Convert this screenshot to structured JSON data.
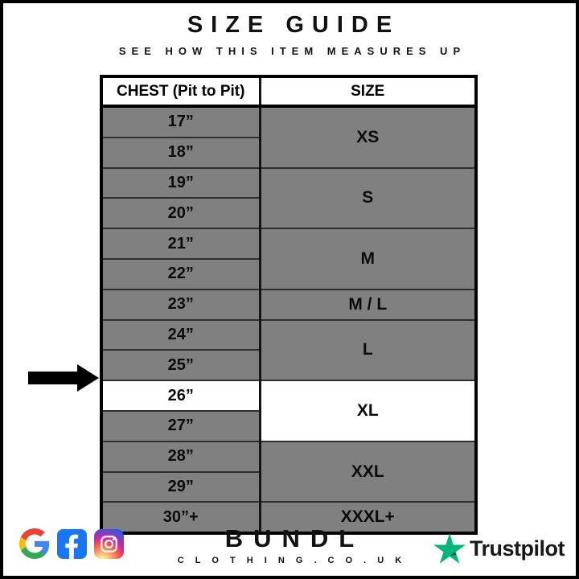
{
  "title": "SIZE GUIDE",
  "subtitle": "SEE HOW THIS ITEM MEASURES UP",
  "table": {
    "col_chest": "CHEST (Pit to Pit)",
    "col_size": "SIZE",
    "groups": [
      {
        "size": "XS",
        "chest": [
          "17”",
          "18”"
        ]
      },
      {
        "size": "S",
        "chest": [
          "19”",
          "20”"
        ]
      },
      {
        "size": "M",
        "chest": [
          "21”",
          "22”"
        ]
      },
      {
        "size": "M / L",
        "chest": [
          "23”"
        ]
      },
      {
        "size": "L",
        "chest": [
          "24”",
          "25”"
        ]
      },
      {
        "size": "XL",
        "chest": [
          "26”",
          "27”"
        ],
        "highlight_chest": [
          "26”"
        ],
        "highlight_size": true
      },
      {
        "size": "XXL",
        "chest": [
          "28”",
          "29”"
        ]
      },
      {
        "size": "XXXL+",
        "chest": [
          "30”+"
        ]
      }
    ]
  },
  "chart_data": {
    "type": "table",
    "title": "SIZE GUIDE",
    "subtitle": "SEE HOW THIS ITEM MEASURES UP",
    "columns": [
      "CHEST (Pit to Pit)",
      "SIZE"
    ],
    "rows": [
      [
        "17”",
        "XS"
      ],
      [
        "18”",
        "XS"
      ],
      [
        "19”",
        "S"
      ],
      [
        "20”",
        "S"
      ],
      [
        "21”",
        "M"
      ],
      [
        "22”",
        "M"
      ],
      [
        "23”",
        "M / L"
      ],
      [
        "24”",
        "L"
      ],
      [
        "25”",
        "L"
      ],
      [
        "26”",
        "XL"
      ],
      [
        "27”",
        "XL"
      ],
      [
        "28”",
        "XXL"
      ],
      [
        "29”",
        "XXL"
      ],
      [
        "30”+",
        "XXXL+"
      ]
    ],
    "highlighted_row": {
      "chest": "26”",
      "size": "XL",
      "indicator": "black arrow at left"
    }
  },
  "footer": {
    "social_icons": [
      "google-icon",
      "facebook-icon",
      "instagram-icon"
    ],
    "brand_name": "BUNDL",
    "brand_domain": "C L O T H I N G . C O . U K",
    "trustpilot_label": "Trustpilot"
  },
  "colors": {
    "cell_gray": "#808080",
    "highlight_white": "#ffffff",
    "border_black": "#000000",
    "facebook_blue": "#1877F2",
    "trustpilot_green": "#00B67A",
    "trustpilot_dark_green": "#005128",
    "google_blue": "#4285F4",
    "google_red": "#EA4335",
    "google_yellow": "#FBBC05",
    "google_green": "#34A853"
  }
}
